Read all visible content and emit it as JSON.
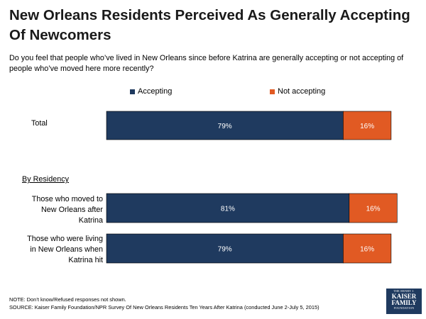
{
  "title": "New Orleans Residents Perceived As Generally Accepting Of Newcomers",
  "question": "Do you feel that people who’ve lived in New Orleans since before Katrina are generally accepting or not accepting of people who’ve moved here more recently?",
  "section_label": "By Residency",
  "notes": {
    "note": "NOTE: Don’t know/Refused responses not shown.",
    "source": "SOURCE: Kaiser Family Foundation/NPR Survey Of New Orleans Residents Ten Years After Katrina (conducted June 2-July 5, 2015)"
  },
  "logo": {
    "line1": "THE HENRY J.",
    "line2": "KAISER",
    "line3": "FAMILY",
    "line4": "FOUNDATION"
  },
  "colors": {
    "accepting": "#1f3a5f",
    "not_accepting": "#e15a23"
  },
  "chart_data": {
    "type": "bar",
    "orientation": "horizontal",
    "stacked": true,
    "categories": [
      "Total",
      "Those who moved to New Orleans after Katrina",
      "Those who were living in New Orleans when Katrina hit"
    ],
    "category_lines": [
      [
        "Total"
      ],
      [
        "Those who moved to",
        "New Orleans after",
        "Katrina"
      ],
      [
        "Those who were living",
        "in New Orleans when",
        "Katrina hit"
      ]
    ],
    "series": [
      {
        "name": "Accepting",
        "values": [
          79,
          81,
          79
        ],
        "labels": [
          "79%",
          "81%",
          "79%"
        ]
      },
      {
        "name": "Not accepting",
        "values": [
          16,
          16,
          16
        ],
        "labels": [
          "16%",
          "16%",
          "16%"
        ]
      }
    ],
    "legend": "top-center",
    "xlim": [
      0,
      100
    ],
    "grid": false
  }
}
